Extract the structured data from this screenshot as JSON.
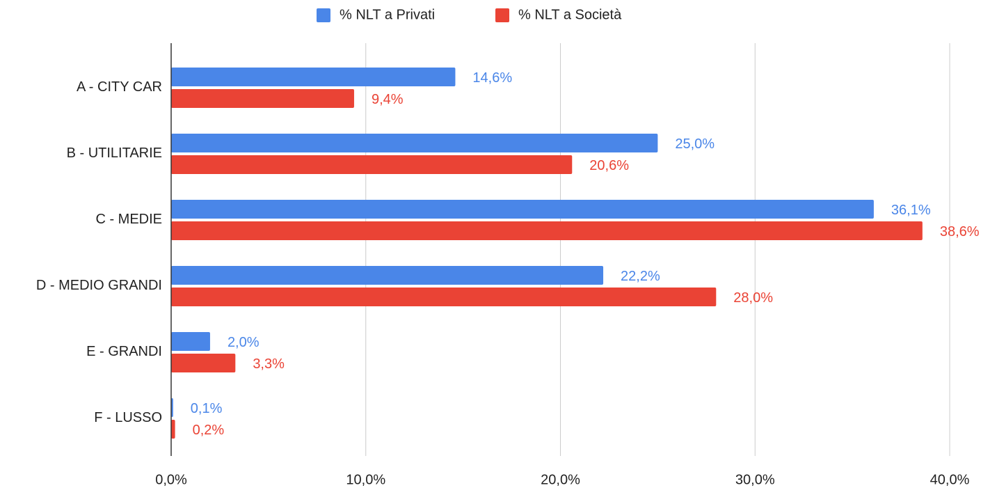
{
  "chart_data": {
    "type": "bar",
    "orientation": "horizontal",
    "categories": [
      "A - CITY CAR",
      "B - UTILITARIE",
      "C - MEDIE",
      "D - MEDIO GRANDI",
      "E - GRANDI",
      "F - LUSSO"
    ],
    "series": [
      {
        "name": "% NLT a Privati",
        "color": "#4a86e8",
        "values": [
          14.6,
          25.0,
          36.1,
          22.2,
          2.0,
          0.1
        ],
        "value_labels": [
          "14,6%",
          "25,0%",
          "36,1%",
          "22,2%",
          "2,0%",
          "0,1%"
        ]
      },
      {
        "name": "% NLT a Società",
        "color": "#ea4335",
        "values": [
          9.4,
          20.6,
          38.6,
          28.0,
          3.3,
          0.2
        ],
        "value_labels": [
          "9,4%",
          "20,6%",
          "38,6%",
          "28,0%",
          "3,3%",
          "0,2%"
        ]
      }
    ],
    "xlim": [
      0,
      40
    ],
    "xticks": [
      {
        "value": 0,
        "label": "0,0%"
      },
      {
        "value": 10,
        "label": "10,0%"
      },
      {
        "value": 20,
        "label": "20,0%"
      },
      {
        "value": 30,
        "label": "30,0%"
      },
      {
        "value": 40,
        "label": "40,0%"
      }
    ],
    "grid": true,
    "legend": "top"
  }
}
